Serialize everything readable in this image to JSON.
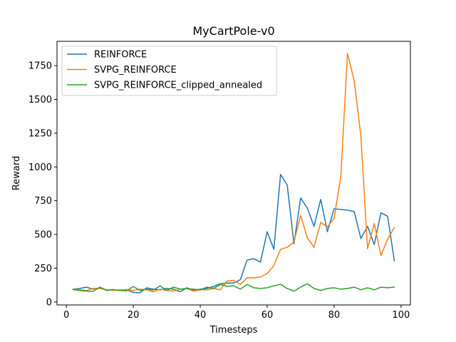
{
  "chart_data": {
    "type": "line",
    "title": "MyCartPole-v0",
    "xlabel": "Timesteps",
    "ylabel": "Reward",
    "xlim": [
      -2.8,
      102.8
    ],
    "ylim": [
      -22,
      1930
    ],
    "xticks": [
      0,
      20,
      40,
      60,
      80,
      100
    ],
    "yticks": [
      0,
      250,
      500,
      750,
      1000,
      1250,
      1500,
      1750
    ],
    "xtick_labels": [
      "0",
      "20",
      "40",
      "60",
      "80",
      "100"
    ],
    "ytick_labels": [
      "0",
      "250",
      "500",
      "750",
      "1000",
      "1250",
      "1500",
      "1750"
    ],
    "grid": false,
    "legend_position": "top-left",
    "x": [
      2,
      4,
      6,
      8,
      10,
      12,
      14,
      16,
      18,
      20,
      22,
      24,
      26,
      28,
      30,
      32,
      34,
      36,
      38,
      40,
      42,
      44,
      46,
      48,
      50,
      52,
      54,
      56,
      58,
      60,
      62,
      64,
      66,
      68,
      70,
      72,
      74,
      76,
      78,
      80,
      82,
      84,
      86,
      88,
      90,
      92,
      94,
      96,
      98
    ],
    "series": [
      {
        "name": "REINFORCE",
        "color": "#1f77b4",
        "values": [
          95,
          100,
          110,
          95,
          105,
          90,
          88,
          85,
          92,
          70,
          68,
          105,
          95,
          90,
          100,
          95,
          75,
          105,
          85,
          95,
          100,
          115,
          135,
          140,
          140,
          165,
          310,
          320,
          295,
          520,
          390,
          945,
          865,
          430,
          770,
          695,
          560,
          760,
          520,
          690,
          685,
          680,
          670,
          470,
          560,
          425,
          660,
          635,
          305
        ]
      },
      {
        "name": "SVPG_REINFORCE",
        "color": "#ff7f0e",
        "values": [
          95,
          90,
          85,
          100,
          100,
          90,
          85,
          90,
          90,
          85,
          95,
          90,
          75,
          95,
          85,
          80,
          95,
          100,
          80,
          90,
          90,
          100,
          90,
          155,
          160,
          130,
          180,
          178,
          185,
          210,
          270,
          390,
          405,
          445,
          640,
          475,
          405,
          590,
          555,
          620,
          925,
          1840,
          1640,
          1230,
          395,
          580,
          345,
          465,
          550
        ]
      },
      {
        "name": "SVPG_REINFORCE_clipped_annealed",
        "color": "#2ca02c",
        "values": [
          92,
          85,
          80,
          78,
          110,
          85,
          92,
          85,
          82,
          115,
          85,
          95,
          88,
          120,
          85,
          110,
          95,
          100,
          95,
          90,
          110,
          100,
          130,
          115,
          120,
          95,
          130,
          105,
          100,
          105,
          120,
          130,
          100,
          80,
          110,
          135,
          100,
          85,
          100,
          105,
          95,
          100,
          110,
          90,
          105,
          90,
          110,
          105,
          110
        ]
      }
    ]
  }
}
